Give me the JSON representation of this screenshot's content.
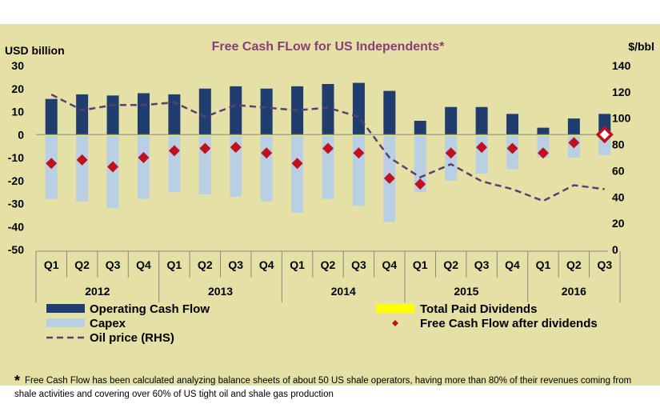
{
  "chart_data": {
    "type": "bar",
    "title": "Free Cash FLow for US Independents*",
    "y_left_label": "USD billion",
    "y_right_label": "$/bbl",
    "y_left_range": [
      -50,
      30
    ],
    "y_left_ticks": [
      "30",
      "20",
      "10",
      "0",
      "-10",
      "-20",
      "-30",
      "-40",
      "-50"
    ],
    "y_right_range": [
      0,
      140
    ],
    "y_right_ticks": [
      "140",
      "120",
      "100",
      "80",
      "60",
      "40",
      "20",
      "0"
    ],
    "quarters": [
      "Q1",
      "Q2",
      "Q3",
      "Q4",
      "Q1",
      "Q2",
      "Q3",
      "Q4",
      "Q1",
      "Q2",
      "Q3",
      "Q4",
      "Q1",
      "Q2",
      "Q3",
      "Q4",
      "Q1",
      "Q2",
      "Q3"
    ],
    "years": [
      {
        "label": "2012",
        "count": 4
      },
      {
        "label": "2013",
        "count": 4
      },
      {
        "label": "2014",
        "count": 4
      },
      {
        "label": "2015",
        "count": 4
      },
      {
        "label": "2016",
        "count": 3
      }
    ],
    "series": [
      {
        "name": "Operating Cash Flow",
        "color": "#1f3d6e",
        "values": [
          15.5,
          17.5,
          17,
          18,
          17.5,
          20,
          21,
          20,
          21,
          22,
          22.5,
          19,
          6,
          12,
          12,
          9,
          3,
          7,
          9
        ]
      },
      {
        "name": "Capex",
        "color": "#b9cfe3",
        "values": [
          -28,
          -29,
          -32,
          -28,
          -25,
          -26,
          -27,
          -29,
          -34,
          -28,
          -31,
          -38,
          -25,
          -20,
          -17,
          -15,
          -10,
          -10,
          -9
        ]
      },
      {
        "name": "Total Paid Dividends",
        "color": "#ffff00",
        "values": [
          -0.5,
          -0.5,
          -0.5,
          -0.5,
          -0.5,
          -0.5,
          -0.5,
          -0.5,
          -0.5,
          -0.5,
          -0.5,
          -0.5,
          -0.5,
          -0.5,
          -0.5,
          -0.5,
          -0.5,
          -0.5,
          -0.5
        ]
      },
      {
        "name": "Free Cash Flow after dividends",
        "color": "#c0111f",
        "values": [
          -12.5,
          -11,
          -14,
          -10,
          -7,
          -6,
          -5.5,
          -8,
          -12.5,
          -6,
          -8,
          -19,
          -21.5,
          -8,
          -5.5,
          -6,
          -8,
          -3.5,
          0
        ]
      },
      {
        "name": "Oil price (RHS)",
        "color": "#5a3f73",
        "values": [
          118,
          106,
          110,
          110,
          112,
          101,
          110,
          108,
          106,
          108,
          101,
          70,
          55,
          65,
          52,
          46,
          37,
          49,
          46
        ]
      }
    ]
  },
  "footnote": {
    "mark": "*",
    "text": "Free Cash Flow has been calculated analyzing balance sheets of about 50 US shale operators, having more than 80% of their revenues coming from shale activities and covering over 60% of US tight oil and shale gas production"
  }
}
